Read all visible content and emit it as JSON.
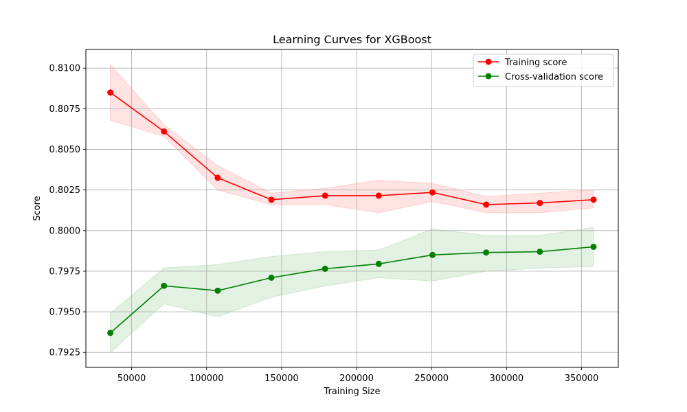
{
  "chart_data": {
    "type": "line",
    "title": "Learning Curves for XGBoost",
    "xlabel": "Training Size",
    "ylabel": "Score",
    "xlim": [
      19500,
      374500
    ],
    "ylim": [
      0.79158,
      0.81115
    ],
    "xticks": [
      50000,
      100000,
      150000,
      200000,
      250000,
      300000,
      350000
    ],
    "xtick_labels": [
      "50000",
      "100000",
      "150000",
      "200000",
      "250000",
      "300000",
      "350000"
    ],
    "yticks": [
      0.7925,
      0.795,
      0.7975,
      0.8,
      0.8025,
      0.805,
      0.8075,
      0.81
    ],
    "ytick_labels": [
      "0.7925",
      "0.7950",
      "0.7975",
      "0.8000",
      "0.8025",
      "0.8050",
      "0.8075",
      "0.8100"
    ],
    "grid": true,
    "legend_position": "top-right",
    "x": [
      35800,
      71600,
      107400,
      143200,
      179000,
      214800,
      250600,
      286400,
      322200,
      358000
    ],
    "series": [
      {
        "name": "Training score",
        "color": "#ff0000",
        "fill_color": "#ffcccc",
        "values": [
          0.8085,
          0.8061,
          0.80325,
          0.8019,
          0.80215,
          0.80215,
          0.80235,
          0.8016,
          0.8017,
          0.8019
        ],
        "upper": [
          0.8102,
          0.8065,
          0.804,
          0.8023,
          0.8026,
          0.8031,
          0.8029,
          0.8021,
          0.8023,
          0.8025
        ],
        "lower": [
          0.8068,
          0.8058,
          0.8025,
          0.8016,
          0.8016,
          0.8011,
          0.8018,
          0.8011,
          0.8011,
          0.8014
        ]
      },
      {
        "name": "Cross-validation score",
        "color": "#008000",
        "fill_color": "#cce6cc",
        "values": [
          0.7937,
          0.7966,
          0.7963,
          0.7971,
          0.79765,
          0.79795,
          0.7985,
          0.79865,
          0.7987,
          0.799
        ],
        "upper": [
          0.7949,
          0.7977,
          0.7979,
          0.7984,
          0.7987,
          0.7988,
          0.8001,
          0.7997,
          0.7997,
          0.8002
        ],
        "lower": [
          0.7925,
          0.7955,
          0.7947,
          0.7959,
          0.7966,
          0.7971,
          0.7969,
          0.7975,
          0.7977,
          0.7978
        ]
      }
    ]
  }
}
